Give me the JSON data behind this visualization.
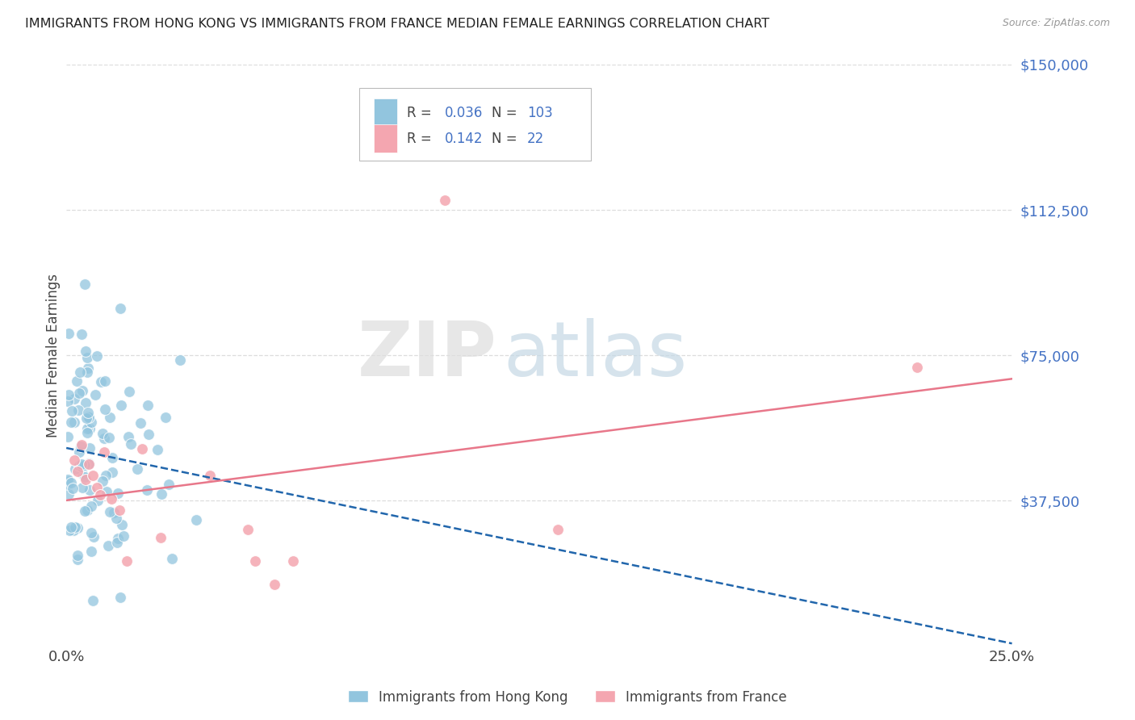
{
  "title": "IMMIGRANTS FROM HONG KONG VS IMMIGRANTS FROM FRANCE MEDIAN FEMALE EARNINGS CORRELATION CHART",
  "source": "Source: ZipAtlas.com",
  "ylabel": "Median Female Earnings",
  "xlim": [
    0.0,
    0.25
  ],
  "ylim": [
    0,
    150000
  ],
  "yticks": [
    0,
    37500,
    75000,
    112500,
    150000
  ],
  "ytick_labels": [
    "",
    "$37,500",
    "$75,000",
    "$112,500",
    "$150,000"
  ],
  "xtick_labels": [
    "0.0%",
    "25.0%"
  ],
  "hk_R": 0.036,
  "hk_N": 103,
  "fr_R": 0.142,
  "fr_N": 22,
  "hk_color": "#92c5de",
  "fr_color": "#f4a6b0",
  "hk_line_color": "#2166ac",
  "fr_line_color": "#e8778a",
  "background_color": "#ffffff",
  "legend_label_hk": "Immigrants from Hong Kong",
  "legend_label_fr": "Immigrants from France",
  "stat_color": "#4472c4",
  "label_color": "#555555",
  "grid_color": "#dddddd",
  "title_color": "#222222",
  "source_color": "#999999",
  "watermark_zip_color": "#e0e0e0",
  "watermark_atlas_color": "#ccdde8"
}
